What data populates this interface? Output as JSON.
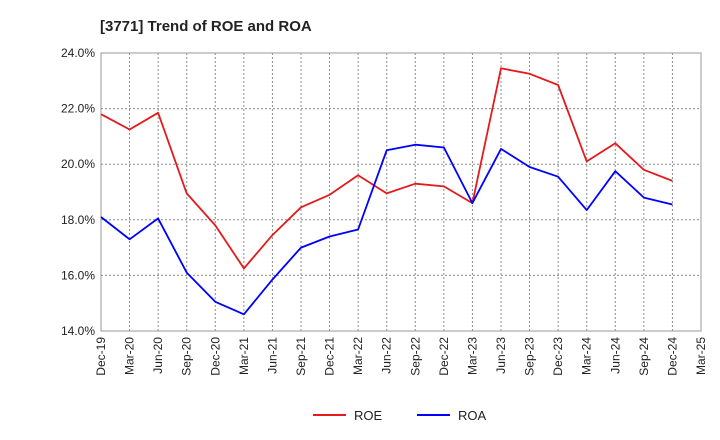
{
  "chart_data": {
    "type": "line",
    "title": "[3771]  Trend of ROE and ROA",
    "xlabel": "",
    "ylabel": "",
    "categories": [
      "Dec-19",
      "Mar-20",
      "Jun-20",
      "Sep-20",
      "Dec-20",
      "Mar-21",
      "Jun-21",
      "Sep-21",
      "Dec-21",
      "Mar-22",
      "Jun-22",
      "Sep-22",
      "Dec-22",
      "Mar-23",
      "Jun-23",
      "Sep-23",
      "Dec-23",
      "Mar-24",
      "Jun-24",
      "Sep-24",
      "Dec-24",
      "Mar-25"
    ],
    "ylim": [
      14.0,
      24.0
    ],
    "yticks": [
      "14.0%",
      "16.0%",
      "18.0%",
      "20.0%",
      "22.0%",
      "24.0%"
    ],
    "grid": true,
    "legend_position": "bottom",
    "series": [
      {
        "name": "ROE",
        "color": "#e41a1c",
        "values": [
          21.8,
          21.25,
          21.85,
          18.95,
          17.8,
          16.25,
          17.45,
          18.45,
          18.9,
          19.6,
          18.95,
          19.3,
          19.2,
          18.6,
          23.45,
          23.25,
          22.85,
          20.1,
          20.75,
          19.8,
          19.4,
          null
        ]
      },
      {
        "name": "ROA",
        "color": "#0000ff",
        "values": [
          18.1,
          17.3,
          18.05,
          16.1,
          15.05,
          14.6,
          15.85,
          17.0,
          17.4,
          17.65,
          20.5,
          20.7,
          20.6,
          18.6,
          20.55,
          19.9,
          19.55,
          18.35,
          19.75,
          18.8,
          18.55,
          null
        ]
      }
    ]
  }
}
